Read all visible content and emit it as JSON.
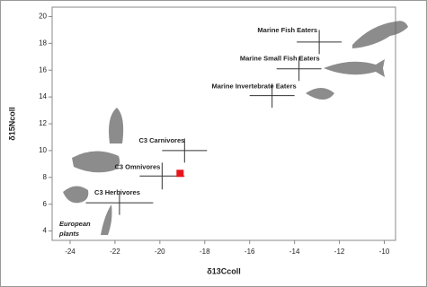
{
  "chart_data": {
    "type": "scatter",
    "x_label": "δ13Ccoll",
    "y_label": "δ15Ncoll",
    "xlim": [
      -24.8,
      -9.5
    ],
    "ylim": [
      3.3,
      20.7
    ],
    "xticks": [
      -24,
      -22,
      -20,
      -18,
      -16,
      -14,
      -12,
      -10
    ],
    "yticks": [
      4,
      6,
      8,
      10,
      12,
      14,
      16,
      18,
      20
    ],
    "points": [
      {
        "label": "Marine Fish Eaters",
        "x": -12.9,
        "y": 18.1,
        "xerr": 1.0,
        "yerr": 0.9
      },
      {
        "label": "Marine Small Fish Eaters",
        "x": -13.8,
        "y": 16.1,
        "xerr": 1.0,
        "yerr": 0.9
      },
      {
        "label": "Marine Invertebrate Eaters",
        "x": -15.0,
        "y": 14.1,
        "xerr": 1.0,
        "yerr": 0.9
      },
      {
        "label": "C3 Carnivores",
        "x": -18.9,
        "y": 10.0,
        "xerr": 1.0,
        "yerr": 0.9
      },
      {
        "label": "C3 Omnivores",
        "x": -19.9,
        "y": 8.1,
        "xerr": 1.0,
        "yerr": 1.0
      },
      {
        "label": "C3 Herbivores",
        "x": -21.8,
        "y": 6.1,
        "xerr": 1.5,
        "yerr": 0.9
      }
    ],
    "sample": {
      "x": -19.1,
      "y": 8.3,
      "color": "#e8141c"
    },
    "annotation": [
      "European",
      "plants"
    ]
  }
}
